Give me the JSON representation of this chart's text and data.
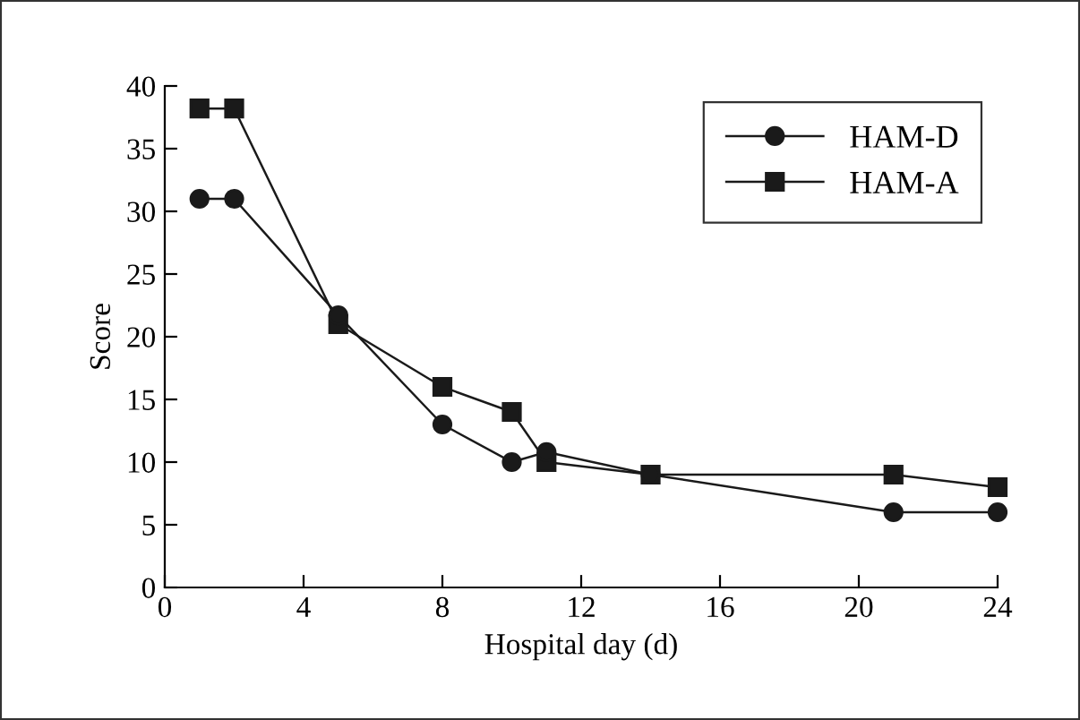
{
  "chart_data": {
    "type": "line",
    "xlabel": "Hospital day (d)",
    "ylabel": "Score",
    "x": [
      1,
      2,
      5,
      8,
      10,
      11,
      14,
      21,
      24
    ],
    "series": [
      {
        "name": "HAM-D",
        "color": "#1a1a1a",
        "marker": "circle",
        "values": [
          31,
          31,
          21.7,
          13,
          10,
          10.8,
          9,
          6,
          6
        ]
      },
      {
        "name": "HAM-A",
        "color": "#1a1a1a",
        "marker": "square",
        "values": [
          38.2,
          38.2,
          21,
          16,
          14,
          10,
          9,
          9,
          8
        ]
      }
    ],
    "xlim": [
      0,
      24
    ],
    "xticks": [
      0,
      4,
      8,
      12,
      16,
      20,
      24
    ],
    "ylim": [
      0,
      40
    ],
    "yticks": [
      0,
      5,
      10,
      15,
      20,
      25,
      30,
      35,
      40
    ],
    "legend": "top right",
    "grid": false,
    "line_style": "solid"
  }
}
